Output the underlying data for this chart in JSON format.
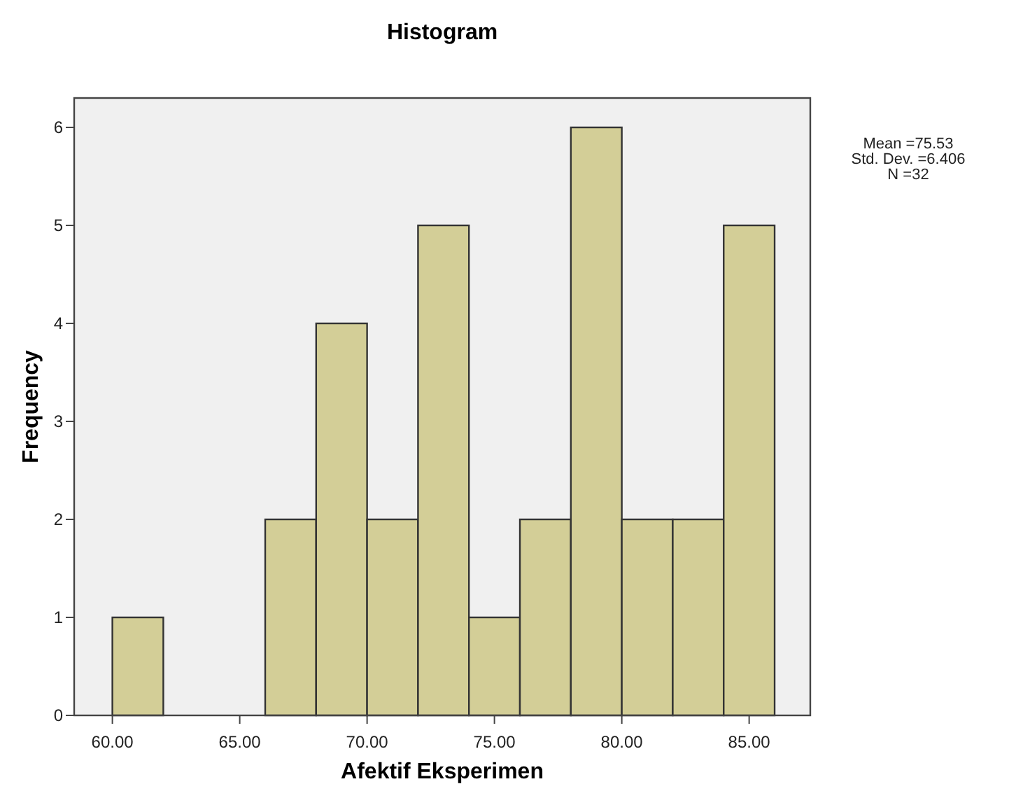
{
  "chart_data": {
    "type": "histogram",
    "title": "Histogram",
    "xlabel": "Afektif Eksperimen",
    "ylabel": "Frequency",
    "bins": [
      60,
      62,
      64,
      66,
      68,
      70,
      72,
      74,
      76,
      78,
      80,
      82,
      84,
      86
    ],
    "values": [
      1,
      0,
      0,
      2,
      4,
      2,
      5,
      1,
      2,
      6,
      2,
      2,
      5
    ],
    "color": "#d3ce97",
    "xlim": [
      58.5,
      87.4
    ],
    "xticks": [
      {
        "value": 60,
        "label": "60.00"
      },
      {
        "value": 65,
        "label": "65.00"
      },
      {
        "value": 70,
        "label": "70.00"
      },
      {
        "value": 75,
        "label": "75.00"
      },
      {
        "value": 80,
        "label": "80.00"
      },
      {
        "value": 85,
        "label": "85.00"
      }
    ],
    "ylim": [
      0,
      6.3
    ],
    "yticks": [
      0,
      1,
      2,
      3,
      4,
      5,
      6
    ],
    "grid": false,
    "annotations": [
      "Mean =75.53",
      "Std. Dev. =6.406",
      "N =32"
    ]
  }
}
